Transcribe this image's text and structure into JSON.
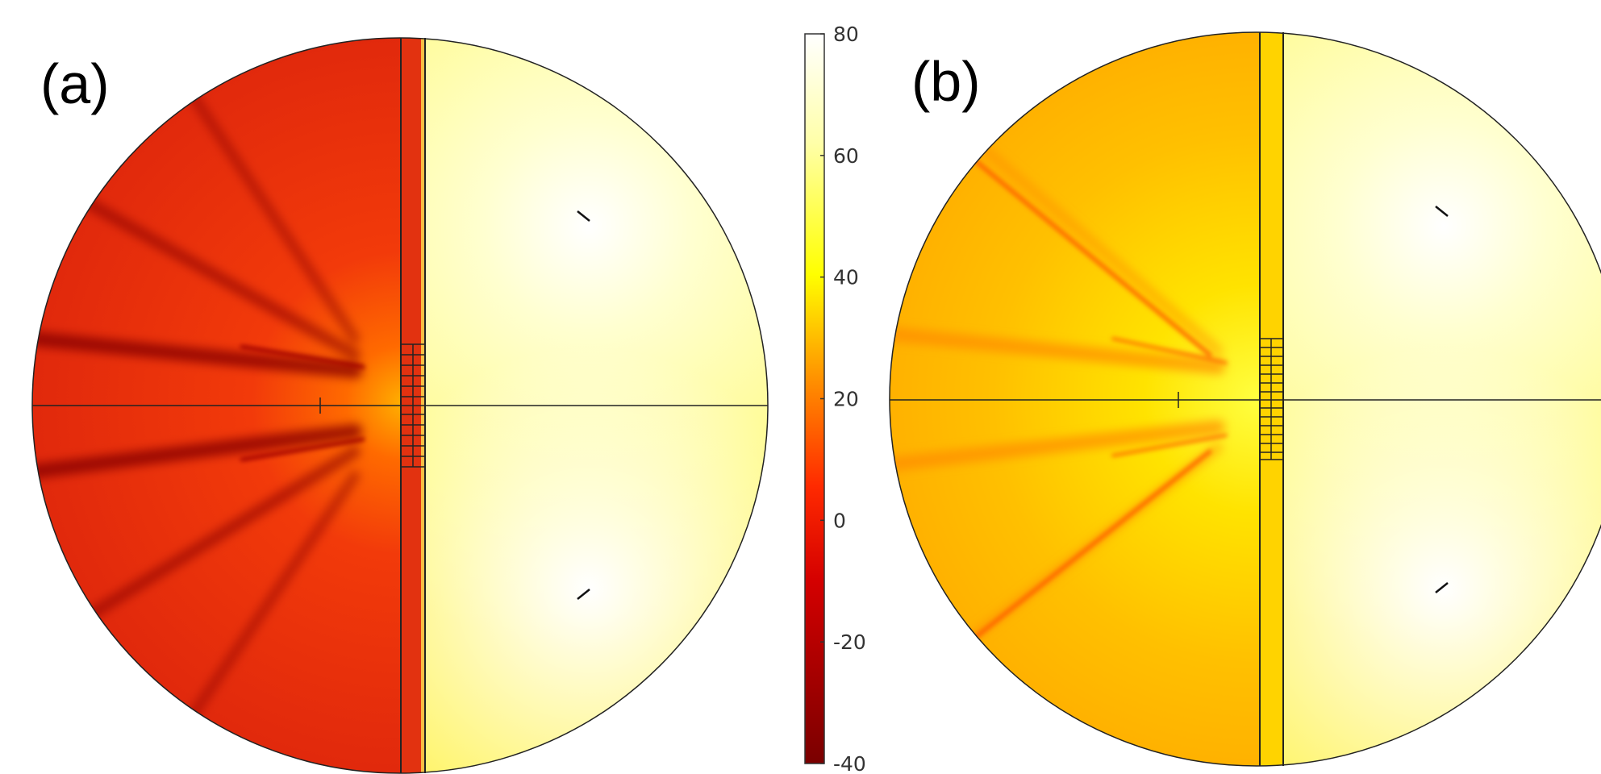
{
  "panels": [
    {
      "id": "a",
      "label": "(a)"
    },
    {
      "id": "b",
      "label": "(b)"
    }
  ],
  "colorbar": {
    "ticks": [
      "80",
      "60",
      "40",
      "20",
      "0",
      "-20",
      "-40"
    ],
    "min": -40,
    "max": 80,
    "colors": {
      "low": "#7a0000",
      "mid_low": "#ff1a00",
      "mid": "#ff8c00",
      "mid_high": "#ffff00",
      "high": "#ffffff"
    }
  }
}
